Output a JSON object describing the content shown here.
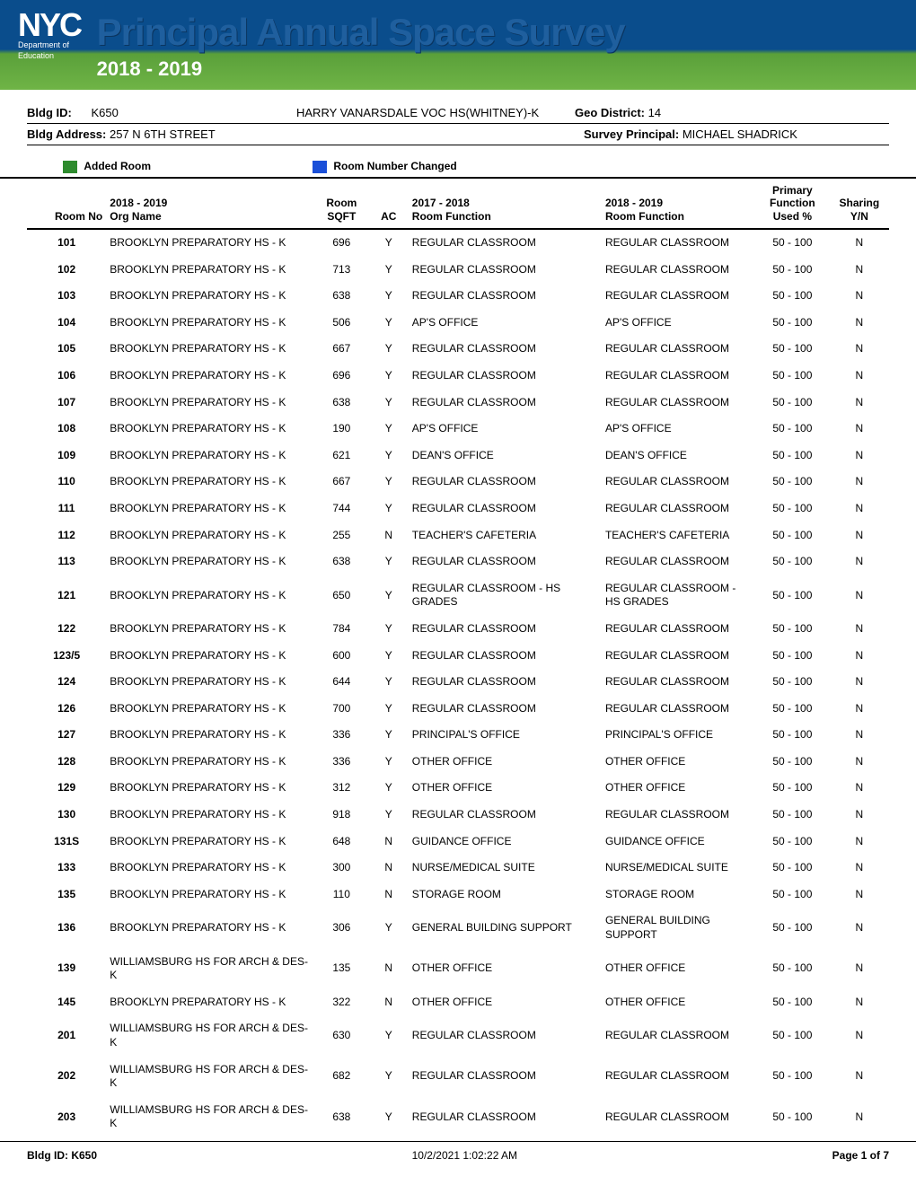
{
  "header": {
    "logo_text": "NYC",
    "dept_line1": "Department of",
    "dept_line2": "Education",
    "title": "Principal Annual Space Survey",
    "year_range": "2018 - 2019",
    "title_color": "#1f5f9e",
    "banner_top_color": "#0a4d8c",
    "banner_bottom_color": "#6fb446"
  },
  "info": {
    "bldg_id_label": "Bldg ID:",
    "bldg_id": "K650",
    "bldg_name": "HARRY VANARSDALE VOC HS(WHITNEY)-K",
    "geo_label": "Geo District:",
    "geo_value": "14",
    "addr_label": "Bldg Address:",
    "addr_value": "257 N 6TH STREET",
    "principal_label": "Survey Principal:",
    "principal_value": "MICHAEL SHADRICK"
  },
  "legend": {
    "added_color": "#2e8b2e",
    "added_label": "Added Room",
    "changed_color": "#1a4fd8",
    "changed_label": "Room Number Changed"
  },
  "columns": {
    "room_no": "Room No",
    "org": "2018 - 2019\nOrg Name",
    "sqft": "Room\nSQFT",
    "ac": "AC",
    "func_prev": "2017 - 2018\nRoom Function",
    "func_curr": "2018 - 2019\nRoom Function",
    "used": "Primary\nFunction\nUsed %",
    "sharing": "Sharing\nY/N"
  },
  "rows": [
    {
      "room": "101",
      "org": "BROOKLYN PREPARATORY HS - K",
      "sqft": "696",
      "ac": "Y",
      "f1": "REGULAR CLASSROOM",
      "f2": "REGULAR CLASSROOM",
      "used": "50 - 100",
      "share": "N"
    },
    {
      "room": "102",
      "org": "BROOKLYN PREPARATORY HS - K",
      "sqft": "713",
      "ac": "Y",
      "f1": "REGULAR CLASSROOM",
      "f2": "REGULAR CLASSROOM",
      "used": "50 - 100",
      "share": "N"
    },
    {
      "room": "103",
      "org": "BROOKLYN PREPARATORY HS - K",
      "sqft": "638",
      "ac": "Y",
      "f1": "REGULAR CLASSROOM",
      "f2": "REGULAR CLASSROOM",
      "used": "50 - 100",
      "share": "N"
    },
    {
      "room": "104",
      "org": "BROOKLYN PREPARATORY HS - K",
      "sqft": "506",
      "ac": "Y",
      "f1": "AP'S OFFICE",
      "f2": "AP'S OFFICE",
      "used": "50 - 100",
      "share": "N"
    },
    {
      "room": "105",
      "org": "BROOKLYN PREPARATORY HS - K",
      "sqft": "667",
      "ac": "Y",
      "f1": "REGULAR CLASSROOM",
      "f2": "REGULAR CLASSROOM",
      "used": "50 - 100",
      "share": "N"
    },
    {
      "room": "106",
      "org": "BROOKLYN PREPARATORY HS - K",
      "sqft": "696",
      "ac": "Y",
      "f1": "REGULAR CLASSROOM",
      "f2": "REGULAR CLASSROOM",
      "used": "50 - 100",
      "share": "N"
    },
    {
      "room": "107",
      "org": "BROOKLYN PREPARATORY HS - K",
      "sqft": "638",
      "ac": "Y",
      "f1": "REGULAR CLASSROOM",
      "f2": "REGULAR CLASSROOM",
      "used": "50 - 100",
      "share": "N"
    },
    {
      "room": "108",
      "org": "BROOKLYN PREPARATORY HS - K",
      "sqft": "190",
      "ac": "Y",
      "f1": "AP'S OFFICE",
      "f2": "AP'S OFFICE",
      "used": "50 - 100",
      "share": "N"
    },
    {
      "room": "109",
      "org": "BROOKLYN PREPARATORY HS - K",
      "sqft": "621",
      "ac": "Y",
      "f1": "DEAN'S OFFICE",
      "f2": "DEAN'S OFFICE",
      "used": "50 - 100",
      "share": "N"
    },
    {
      "room": "110",
      "org": "BROOKLYN PREPARATORY HS - K",
      "sqft": "667",
      "ac": "Y",
      "f1": "REGULAR CLASSROOM",
      "f2": "REGULAR CLASSROOM",
      "used": "50 - 100",
      "share": "N"
    },
    {
      "room": "111",
      "org": "BROOKLYN PREPARATORY HS - K",
      "sqft": "744",
      "ac": "Y",
      "f1": "REGULAR CLASSROOM",
      "f2": "REGULAR CLASSROOM",
      "used": "50 - 100",
      "share": "N"
    },
    {
      "room": "112",
      "org": "BROOKLYN PREPARATORY HS - K",
      "sqft": "255",
      "ac": "N",
      "f1": "TEACHER'S CAFETERIA",
      "f2": "TEACHER'S CAFETERIA",
      "used": "50 - 100",
      "share": "N"
    },
    {
      "room": "113",
      "org": "BROOKLYN PREPARATORY HS - K",
      "sqft": "638",
      "ac": "Y",
      "f1": "REGULAR CLASSROOM",
      "f2": "REGULAR CLASSROOM",
      "used": "50 - 100",
      "share": "N"
    },
    {
      "room": "121",
      "org": "BROOKLYN PREPARATORY HS - K",
      "sqft": "650",
      "ac": "Y",
      "f1": "REGULAR CLASSROOM - HS GRADES",
      "f2": "REGULAR CLASSROOM - HS GRADES",
      "used": "50 - 100",
      "share": "N"
    },
    {
      "room": "122",
      "org": "BROOKLYN PREPARATORY HS - K",
      "sqft": "784",
      "ac": "Y",
      "f1": "REGULAR CLASSROOM",
      "f2": "REGULAR CLASSROOM",
      "used": "50 - 100",
      "share": "N"
    },
    {
      "room": "123/5",
      "org": "BROOKLYN PREPARATORY HS - K",
      "sqft": "600",
      "ac": "Y",
      "f1": "REGULAR CLASSROOM",
      "f2": "REGULAR CLASSROOM",
      "used": "50 - 100",
      "share": "N"
    },
    {
      "room": "124",
      "org": "BROOKLYN PREPARATORY HS - K",
      "sqft": "644",
      "ac": "Y",
      "f1": "REGULAR CLASSROOM",
      "f2": "REGULAR CLASSROOM",
      "used": "50 - 100",
      "share": "N"
    },
    {
      "room": "126",
      "org": "BROOKLYN PREPARATORY HS - K",
      "sqft": "700",
      "ac": "Y",
      "f1": "REGULAR CLASSROOM",
      "f2": "REGULAR CLASSROOM",
      "used": "50 - 100",
      "share": "N"
    },
    {
      "room": "127",
      "org": "BROOKLYN PREPARATORY HS - K",
      "sqft": "336",
      "ac": "Y",
      "f1": "PRINCIPAL'S OFFICE",
      "f2": "PRINCIPAL'S OFFICE",
      "used": "50 - 100",
      "share": "N"
    },
    {
      "room": "128",
      "org": "BROOKLYN PREPARATORY HS - K",
      "sqft": "336",
      "ac": "Y",
      "f1": "OTHER OFFICE",
      "f2": "OTHER OFFICE",
      "used": "50 - 100",
      "share": "N"
    },
    {
      "room": "129",
      "org": "BROOKLYN PREPARATORY HS - K",
      "sqft": "312",
      "ac": "Y",
      "f1": "OTHER OFFICE",
      "f2": "OTHER OFFICE",
      "used": "50 - 100",
      "share": "N"
    },
    {
      "room": "130",
      "org": "BROOKLYN PREPARATORY HS - K",
      "sqft": "918",
      "ac": "Y",
      "f1": "REGULAR CLASSROOM",
      "f2": "REGULAR CLASSROOM",
      "used": "50 - 100",
      "share": "N"
    },
    {
      "room": "131S",
      "org": "BROOKLYN PREPARATORY HS - K",
      "sqft": "648",
      "ac": "N",
      "f1": "GUIDANCE OFFICE",
      "f2": "GUIDANCE OFFICE",
      "used": "50 - 100",
      "share": "N"
    },
    {
      "room": "133",
      "org": "BROOKLYN PREPARATORY HS - K",
      "sqft": "300",
      "ac": "N",
      "f1": "NURSE/MEDICAL SUITE",
      "f2": "NURSE/MEDICAL SUITE",
      "used": "50 - 100",
      "share": "N"
    },
    {
      "room": "135",
      "org": "BROOKLYN PREPARATORY HS - K",
      "sqft": "110",
      "ac": "N",
      "f1": "STORAGE ROOM",
      "f2": "STORAGE ROOM",
      "used": "50 - 100",
      "share": "N"
    },
    {
      "room": "136",
      "org": "BROOKLYN PREPARATORY HS - K",
      "sqft": "306",
      "ac": "Y",
      "f1": "GENERAL BUILDING SUPPORT",
      "f2": "GENERAL BUILDING SUPPORT",
      "used": "50 - 100",
      "share": "N"
    },
    {
      "room": "139",
      "org": "WILLIAMSBURG HS FOR ARCH & DES-K",
      "sqft": "135",
      "ac": "N",
      "f1": "OTHER OFFICE",
      "f2": "OTHER OFFICE",
      "used": "50 - 100",
      "share": "N"
    },
    {
      "room": "145",
      "org": "BROOKLYN PREPARATORY HS - K",
      "sqft": "322",
      "ac": "N",
      "f1": "OTHER OFFICE",
      "f2": "OTHER OFFICE",
      "used": "50 - 100",
      "share": "N"
    },
    {
      "room": "201",
      "org": "WILLIAMSBURG HS FOR ARCH & DES-K",
      "sqft": "630",
      "ac": "Y",
      "f1": "REGULAR CLASSROOM",
      "f2": "REGULAR CLASSROOM",
      "used": "50 - 100",
      "share": "N"
    },
    {
      "room": "202",
      "org": "WILLIAMSBURG HS FOR ARCH & DES-K",
      "sqft": "682",
      "ac": "Y",
      "f1": "REGULAR CLASSROOM",
      "f2": "REGULAR CLASSROOM",
      "used": "50 - 100",
      "share": "N"
    },
    {
      "room": "203",
      "org": "WILLIAMSBURG HS FOR ARCH & DES-K",
      "sqft": "638",
      "ac": "Y",
      "f1": "REGULAR CLASSROOM",
      "f2": "REGULAR CLASSROOM",
      "used": "50 - 100",
      "share": "N"
    }
  ],
  "footer": {
    "left": "Bldg ID: K650",
    "center": "10/2/2021 1:02:22 AM",
    "right": "Page 1 of 7"
  }
}
